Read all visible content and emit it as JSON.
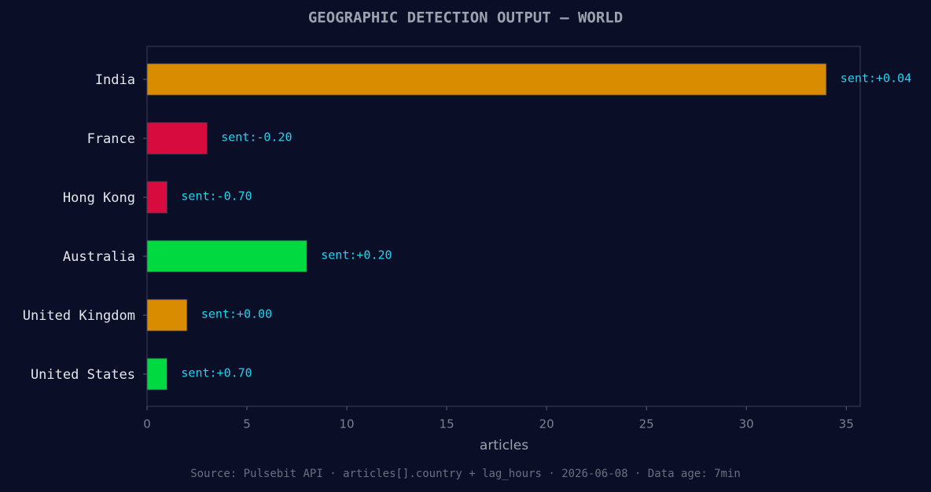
{
  "chart_data": {
    "type": "barh",
    "title": "GEOGRAPHIC DETECTION OUTPUT — WORLD",
    "categories": [
      "India",
      "France",
      "Hong Kong",
      "Australia",
      "United Kingdom",
      "United States"
    ],
    "values": [
      34,
      3,
      1,
      8,
      2,
      1
    ],
    "colors": [
      "#d98c00",
      "#d80b3e",
      "#d80b3e",
      "#00d940",
      "#d98c00",
      "#00d940"
    ],
    "bar_labels": [
      "sent:+0.04",
      "sent:-0.20",
      "sent:-0.70",
      "sent:+0.20",
      "sent:+0.00",
      "sent:+0.70"
    ],
    "xlim": [
      0,
      35.7
    ],
    "xticks": [
      0,
      5,
      10,
      15,
      20,
      25,
      30,
      35
    ],
    "xlabel": "articles",
    "source": "Source: Pulsebit API · articles[].country + lag_hours · 2026-06-08 · Data age: 7min"
  }
}
